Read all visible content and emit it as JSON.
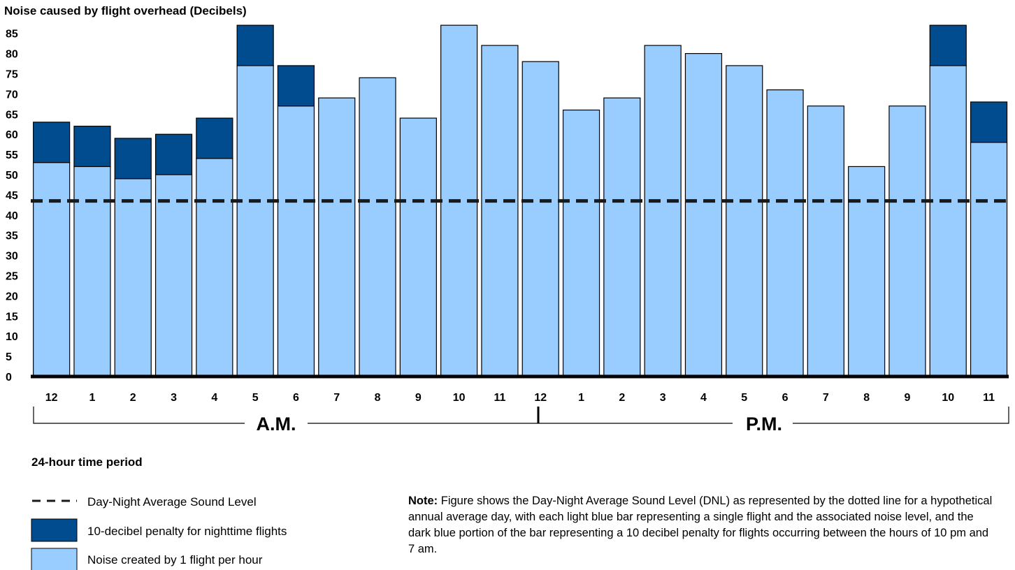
{
  "chart_data": {
    "type": "bar",
    "title": "Noise caused by flight overhead (Decibels)",
    "xlabel": "24-hour time period",
    "ylabel": "",
    "ylim": [
      0,
      85
    ],
    "yticks": [
      0,
      5,
      10,
      15,
      20,
      25,
      30,
      35,
      40,
      45,
      50,
      55,
      60,
      65,
      70,
      75,
      80,
      85
    ],
    "categories": [
      "12",
      "1",
      "2",
      "3",
      "4",
      "5",
      "6",
      "7",
      "8",
      "9",
      "10",
      "11",
      "12",
      "1",
      "2",
      "3",
      "4",
      "5",
      "6",
      "7",
      "8",
      "9",
      "10",
      "11"
    ],
    "periods": [
      "A.M.",
      "P.M."
    ],
    "series": [
      {
        "name": "Noise created by 1 flight per hour",
        "color": "#99ccff",
        "values": [
          53,
          52,
          49,
          50,
          54,
          77,
          67,
          69,
          74,
          64,
          87,
          82,
          78,
          66,
          69,
          82,
          80,
          77,
          71,
          67,
          52,
          67,
          77,
          58
        ]
      },
      {
        "name": "10-decibel penalty for nighttime flights",
        "color": "#004c8f",
        "values": [
          10,
          10,
          10,
          10,
          10,
          10,
          10,
          0,
          0,
          0,
          0,
          0,
          0,
          0,
          0,
          0,
          0,
          0,
          0,
          0,
          0,
          0,
          10,
          10
        ]
      }
    ],
    "reference_line": {
      "name": "Day-Night Average Sound Level",
      "value": 43.5,
      "style": "dashed"
    },
    "legend": {
      "placement": "bottom-left",
      "items": [
        {
          "label": "Day-Night Average Sound Level",
          "kind": "dashed-line",
          "color": "#1a1a1a"
        },
        {
          "label": "10-decibel penalty for nighttime flights",
          "kind": "swatch",
          "color": "#004c8f"
        },
        {
          "label": "Noise created by 1 flight per hour",
          "kind": "swatch",
          "color": "#99ccff"
        }
      ]
    },
    "grid": false
  },
  "note": {
    "lead": "Note:",
    "text": " Figure shows the Day-Night Average Sound Level (DNL) as represented by the dotted line for a hypothetical annual average day, with each light blue bar representing a single flight and the associated noise level, and the dark blue portion of the bar representing a 10 decibel penalty for flights occurring between the hours of 10 pm and 7 am."
  }
}
